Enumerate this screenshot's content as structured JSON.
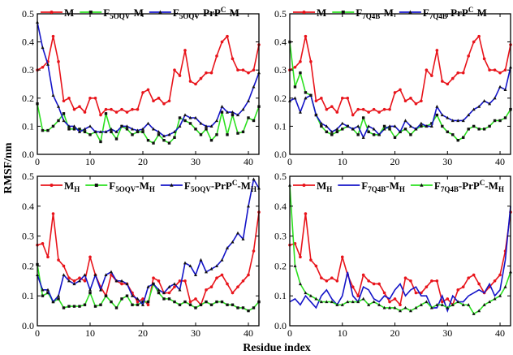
{
  "figure": {
    "ylabel": "RMSF/nm",
    "xlabel": "Residue index"
  },
  "chart_data": [
    {
      "type": "line",
      "xlim": [
        0,
        42
      ],
      "ylim": [
        0,
        0.5
      ],
      "xticks": [
        "0",
        "10",
        "20",
        "30",
        "40"
      ],
      "yticks": [
        "0.0",
        "0.1",
        "0.2",
        "0.3",
        "0.4",
        "0.5"
      ],
      "grid": false,
      "legend_position": "top",
      "legend": [
        {
          "parts": [
            {
              "t": "M"
            }
          ]
        },
        {
          "parts": [
            {
              "t": "F"
            },
            {
              "t": "5OQV",
              "sub": true
            },
            {
              "t": "-M"
            }
          ]
        },
        {
          "parts": [
            {
              "t": "F"
            },
            {
              "t": "5OQV",
              "sub": true
            },
            {
              "t": "-PrP"
            },
            {
              "t": "C",
              "sup": true
            },
            {
              "t": "-M"
            }
          ]
        }
      ],
      "series": [
        {
          "color": "#e8141b",
          "marker": "circle",
          "values": [
            0.3,
            0.31,
            0.33,
            0.42,
            0.33,
            0.19,
            0.2,
            0.16,
            0.17,
            0.15,
            0.2,
            0.2,
            0.14,
            0.16,
            0.16,
            0.15,
            0.16,
            0.15,
            0.16,
            0.16,
            0.22,
            0.23,
            0.19,
            0.2,
            0.18,
            0.19,
            0.3,
            0.28,
            0.37,
            0.26,
            0.25,
            0.27,
            0.29,
            0.29,
            0.35,
            0.4,
            0.42,
            0.34,
            0.3,
            0.3,
            0.29,
            0.3,
            0.39
          ]
        },
        {
          "color": "#2ce020",
          "marker": "square",
          "values": [
            0.18,
            0.085,
            0.085,
            0.1,
            0.12,
            0.145,
            0.09,
            0.09,
            0.09,
            0.08,
            0.07,
            0.08,
            0.045,
            0.145,
            0.08,
            0.055,
            0.1,
            0.09,
            0.07,
            0.08,
            0.08,
            0.05,
            0.04,
            0.07,
            0.05,
            0.04,
            0.06,
            0.13,
            0.12,
            0.11,
            0.09,
            0.07,
            0.09,
            0.05,
            0.07,
            0.15,
            0.07,
            0.14,
            0.075,
            0.08,
            0.13,
            0.12,
            0.17
          ]
        },
        {
          "color": "#1414c8",
          "marker": "triangle",
          "values": [
            0.47,
            0.38,
            0.32,
            0.21,
            0.17,
            0.12,
            0.1,
            0.1,
            0.08,
            0.09,
            0.1,
            0.08,
            0.08,
            0.08,
            0.09,
            0.08,
            0.1,
            0.1,
            0.09,
            0.085,
            0.09,
            0.11,
            0.09,
            0.08,
            0.065,
            0.07,
            0.08,
            0.1,
            0.14,
            0.13,
            0.13,
            0.11,
            0.1,
            0.1,
            0.12,
            0.17,
            0.15,
            0.15,
            0.14,
            0.16,
            0.19,
            0.24,
            0.29
          ]
        }
      ]
    },
    {
      "type": "line",
      "xlim": [
        0,
        42
      ],
      "ylim": [
        0,
        0.5
      ],
      "xticks": [
        "0",
        "10",
        "20",
        "30",
        "40"
      ],
      "yticks": [
        "0.0",
        "0.1",
        "0.2",
        "0.3",
        "0.4",
        "0.5"
      ],
      "grid": false,
      "legend_position": "top",
      "legend": [
        {
          "parts": [
            {
              "t": "M"
            }
          ]
        },
        {
          "parts": [
            {
              "t": "F"
            },
            {
              "t": "7Q4B",
              "sub": true
            },
            {
              "t": "-M"
            }
          ]
        },
        {
          "parts": [
            {
              "t": "F"
            },
            {
              "t": "7Q4B",
              "sub": true
            },
            {
              "t": "-PrP"
            },
            {
              "t": "C",
              "sup": true
            },
            {
              "t": "-M"
            }
          ]
        }
      ],
      "series": [
        {
          "color": "#e8141b",
          "marker": "circle",
          "values": [
            0.3,
            0.31,
            0.33,
            0.42,
            0.33,
            0.19,
            0.2,
            0.16,
            0.17,
            0.15,
            0.2,
            0.2,
            0.14,
            0.16,
            0.16,
            0.15,
            0.16,
            0.15,
            0.16,
            0.16,
            0.22,
            0.23,
            0.19,
            0.2,
            0.18,
            0.19,
            0.3,
            0.28,
            0.37,
            0.26,
            0.25,
            0.27,
            0.29,
            0.29,
            0.35,
            0.4,
            0.42,
            0.34,
            0.3,
            0.3,
            0.29,
            0.3,
            0.39
          ]
        },
        {
          "color": "#2ce020",
          "marker": "square",
          "values": [
            0.4,
            0.24,
            0.29,
            0.22,
            0.21,
            0.14,
            0.1,
            0.08,
            0.07,
            0.08,
            0.09,
            0.1,
            0.09,
            0.07,
            0.13,
            0.08,
            0.07,
            0.07,
            0.1,
            0.09,
            0.06,
            0.08,
            0.09,
            0.07,
            0.09,
            0.1,
            0.1,
            0.11,
            0.14,
            0.1,
            0.08,
            0.07,
            0.05,
            0.06,
            0.09,
            0.1,
            0.09,
            0.09,
            0.1,
            0.12,
            0.12,
            0.13,
            0.16
          ]
        },
        {
          "color": "#1414c8",
          "marker": "triangle",
          "values": [
            0.19,
            0.2,
            0.15,
            0.2,
            0.21,
            0.14,
            0.11,
            0.1,
            0.08,
            0.09,
            0.11,
            0.1,
            0.09,
            0.1,
            0.06,
            0.1,
            0.09,
            0.07,
            0.09,
            0.1,
            0.1,
            0.08,
            0.12,
            0.1,
            0.09,
            0.11,
            0.1,
            0.1,
            0.17,
            0.14,
            0.13,
            0.12,
            0.12,
            0.12,
            0.14,
            0.16,
            0.17,
            0.19,
            0.18,
            0.2,
            0.24,
            0.23,
            0.31
          ]
        }
      ]
    },
    {
      "type": "line",
      "xlim": [
        0,
        42
      ],
      "ylim": [
        0,
        0.5
      ],
      "xticks": [
        "0",
        "10",
        "20",
        "30",
        "40"
      ],
      "yticks": [
        "0.0",
        "0.1",
        "0.2",
        "0.3",
        "0.4",
        "0.5"
      ],
      "grid": false,
      "legend_position": "top",
      "legend": [
        {
          "parts": [
            {
              "t": "M"
            },
            {
              "t": "H",
              "sub": true
            }
          ]
        },
        {
          "parts": [
            {
              "t": "F"
            },
            {
              "t": "5OQV",
              "sub": true
            },
            {
              "t": "-M"
            },
            {
              "t": "H",
              "sub": true
            }
          ]
        },
        {
          "parts": [
            {
              "t": "F"
            },
            {
              "t": "5OQV",
              "sub": true
            },
            {
              "t": "-PrP"
            },
            {
              "t": "C",
              "sup": true
            },
            {
              "t": "-M"
            },
            {
              "t": "H",
              "sub": true
            }
          ]
        }
      ],
      "series": [
        {
          "color": "#e8141b",
          "marker": "circle",
          "values": [
            0.27,
            0.275,
            0.23,
            0.375,
            0.22,
            0.2,
            0.16,
            0.15,
            0.16,
            0.15,
            0.23,
            0.17,
            0.13,
            0.1,
            0.17,
            0.15,
            0.14,
            0.14,
            0.11,
            0.08,
            0.09,
            0.07,
            0.16,
            0.15,
            0.11,
            0.11,
            0.13,
            0.15,
            0.15,
            0.08,
            0.09,
            0.07,
            0.12,
            0.13,
            0.16,
            0.17,
            0.14,
            0.11,
            0.13,
            0.15,
            0.17,
            0.25,
            0.38
          ]
        },
        {
          "color": "#2ce020",
          "marker": "square",
          "values": [
            0.205,
            0.1,
            0.11,
            0.08,
            0.09,
            0.06,
            0.065,
            0.065,
            0.065,
            0.07,
            0.11,
            0.065,
            0.07,
            0.1,
            0.08,
            0.06,
            0.09,
            0.1,
            0.07,
            0.07,
            0.08,
            0.08,
            0.14,
            0.11,
            0.09,
            0.09,
            0.08,
            0.07,
            0.08,
            0.07,
            0.06,
            0.07,
            0.08,
            0.07,
            0.08,
            0.08,
            0.07,
            0.07,
            0.06,
            0.06,
            0.05,
            0.06,
            0.08
          ]
        },
        {
          "color": "#1414c8",
          "marker": "triangle",
          "values": [
            0.17,
            0.12,
            0.12,
            0.08,
            0.1,
            0.17,
            0.15,
            0.14,
            0.15,
            0.17,
            0.12,
            0.17,
            0.12,
            0.17,
            0.18,
            0.15,
            0.15,
            0.14,
            0.1,
            0.09,
            0.07,
            0.13,
            0.14,
            0.12,
            0.11,
            0.13,
            0.14,
            0.12,
            0.21,
            0.2,
            0.17,
            0.22,
            0.18,
            0.19,
            0.2,
            0.22,
            0.26,
            0.28,
            0.31,
            0.29,
            0.4,
            0.49,
            0.46
          ]
        }
      ]
    },
    {
      "type": "line",
      "xlim": [
        0,
        42
      ],
      "ylim": [
        0,
        0.5
      ],
      "xticks": [
        "0",
        "10",
        "20",
        "30",
        "40"
      ],
      "yticks": [
        "0.0",
        "0.1",
        "0.2",
        "0.3",
        "0.4",
        "0.5"
      ],
      "grid": false,
      "legend_position": "top",
      "legend": [
        {
          "parts": [
            {
              "t": "M"
            },
            {
              "t": "H",
              "sub": true
            }
          ]
        },
        {
          "parts": [
            {
              "t": "F"
            },
            {
              "t": "7Q4B",
              "sub": true
            },
            {
              "t": "-M"
            },
            {
              "t": "H",
              "sub": true
            }
          ]
        },
        {
          "parts": [
            {
              "t": "F"
            },
            {
              "t": "7Q4B",
              "sub": true
            },
            {
              "t": "-PrP"
            },
            {
              "t": "C",
              "sup": true
            },
            {
              "t": "-M"
            },
            {
              "t": "H",
              "sub": true
            }
          ]
        }
      ],
      "series": [
        {
          "color": "#e8141b",
          "marker": "circle",
          "values": [
            0.27,
            0.275,
            0.23,
            0.375,
            0.22,
            0.2,
            0.16,
            0.15,
            0.16,
            0.15,
            0.23,
            0.17,
            0.13,
            0.1,
            0.17,
            0.15,
            0.14,
            0.14,
            0.11,
            0.08,
            0.09,
            0.07,
            0.16,
            0.15,
            0.11,
            0.11,
            0.13,
            0.15,
            0.15,
            0.08,
            0.09,
            0.07,
            0.12,
            0.13,
            0.16,
            0.17,
            0.14,
            0.11,
            0.13,
            0.15,
            0.17,
            0.25,
            0.38
          ]
        },
        {
          "color": "#1414c8",
          "marker": "none",
          "values": [
            0.08,
            0.09,
            0.07,
            0.1,
            0.08,
            0.06,
            0.1,
            0.12,
            0.09,
            0.07,
            0.1,
            0.18,
            0.1,
            0.08,
            0.13,
            0.12,
            0.09,
            0.08,
            0.1,
            0.09,
            0.12,
            0.14,
            0.1,
            0.12,
            0.13,
            0.1,
            0.1,
            0.06,
            0.06,
            0.1,
            0.05,
            0.1,
            0.08,
            0.08,
            0.1,
            0.11,
            0.12,
            0.11,
            0.14,
            0.1,
            0.12,
            0.22,
            0.4
          ]
        },
        {
          "color": "#2ce020",
          "marker": "triangle",
          "values": [
            0.47,
            0.2,
            0.14,
            0.11,
            0.1,
            0.09,
            0.08,
            0.08,
            0.08,
            0.07,
            0.07,
            0.08,
            0.08,
            0.08,
            0.09,
            0.07,
            0.08,
            0.07,
            0.06,
            0.06,
            0.06,
            0.05,
            0.06,
            0.05,
            0.06,
            0.07,
            0.08,
            0.06,
            0.07,
            0.07,
            0.06,
            0.07,
            0.08,
            0.07,
            0.07,
            0.04,
            0.05,
            0.07,
            0.08,
            0.09,
            0.1,
            0.13,
            0.18
          ]
        }
      ]
    }
  ]
}
